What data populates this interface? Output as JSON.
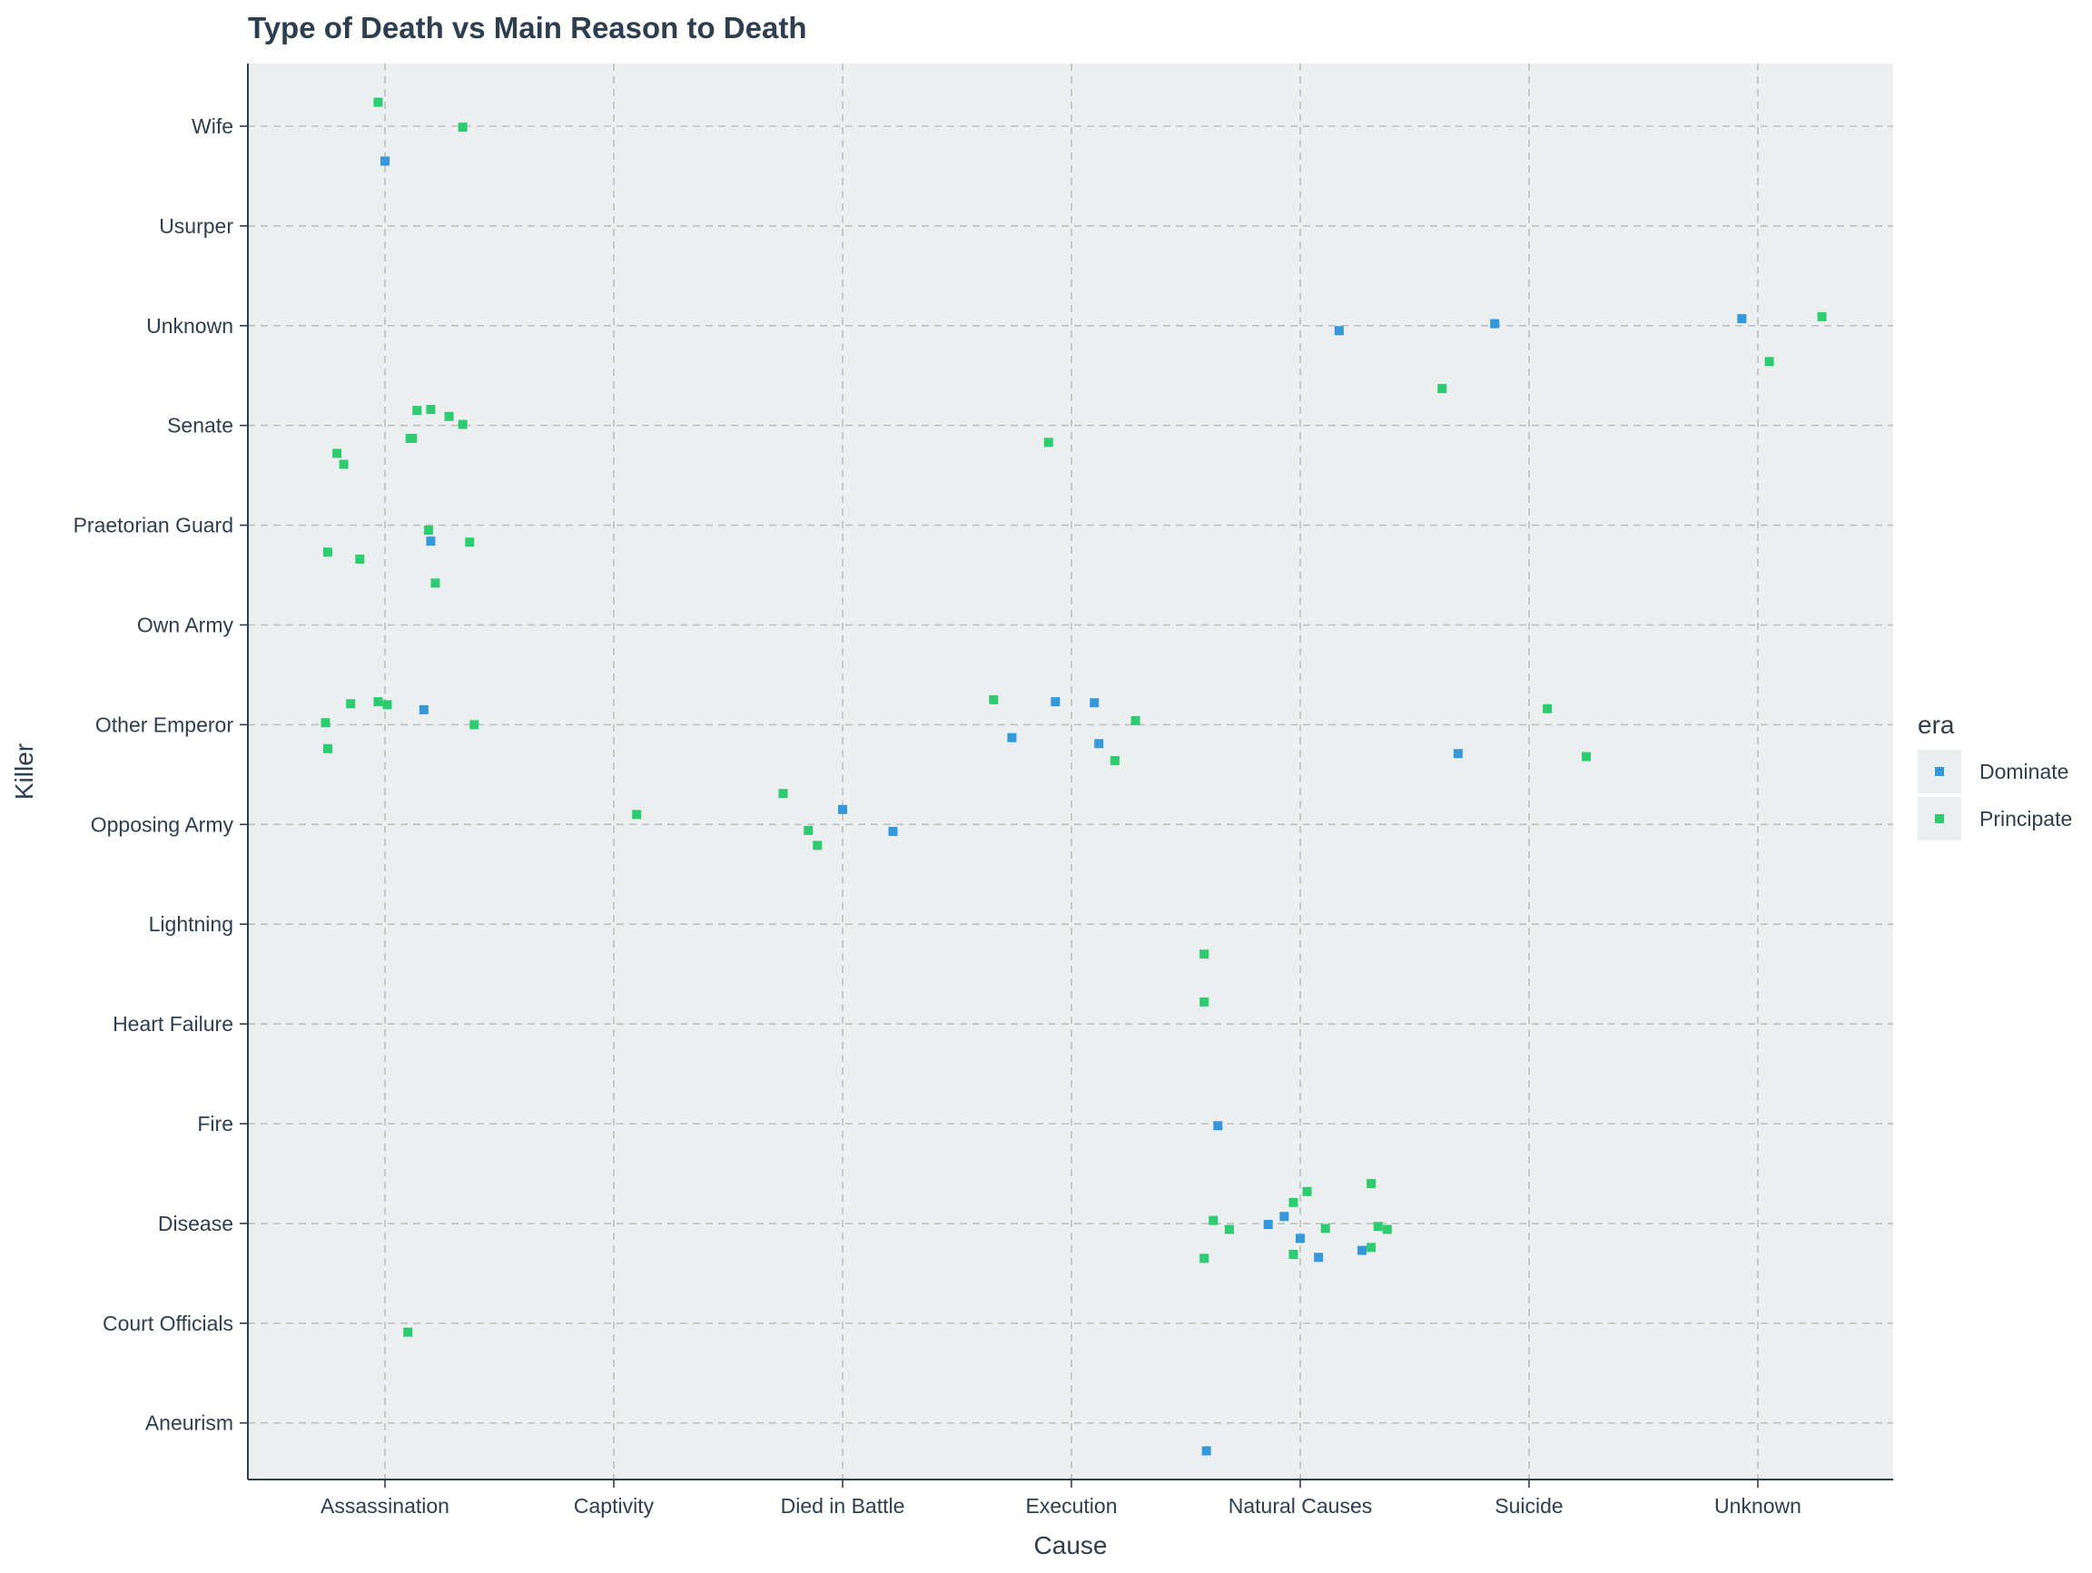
{
  "chart_data": {
    "type": "scatter",
    "title": "Type of Death vs Main Reason to Death",
    "xlabel": "Cause",
    "ylabel": "Killer",
    "x_categories": [
      "Assassination",
      "Captivity",
      "Died in Battle",
      "Execution",
      "Natural Causes",
      "Suicide",
      "Unknown"
    ],
    "y_categories": [
      "Aneurism",
      "Court Officials",
      "Disease",
      "Fire",
      "Heart Failure",
      "Lightning",
      "Opposing Army",
      "Other Emperor",
      "Own Army",
      "Praetorian Guard",
      "Senate",
      "Unknown",
      "Usurper",
      "Wife"
    ],
    "grid": true,
    "legend": {
      "title": "era",
      "position": "right"
    },
    "colors": {
      "plot_bg": "#ebeff0",
      "grid": "#bfbfbf",
      "text": "#2c3e50",
      "Dominate": "#3498db",
      "Principate": "#2ecc71"
    },
    "series": [
      {
        "name": "Dominate",
        "points": [
          {
            "x": 0.0,
            "y": 12.65
          },
          {
            "x": 0.2,
            "y": 8.84
          },
          {
            "x": 0.17,
            "y": 7.15
          },
          {
            "x": 2.0,
            "y": 6.15
          },
          {
            "x": 2.22,
            "y": 5.93
          },
          {
            "x": 2.74,
            "y": 6.87
          },
          {
            "x": 2.93,
            "y": 7.23
          },
          {
            "x": 3.1,
            "y": 7.22
          },
          {
            "x": 3.12,
            "y": 6.81
          },
          {
            "x": 4.17,
            "y": 10.95
          },
          {
            "x": 4.85,
            "y": 11.02
          },
          {
            "x": 4.69,
            "y": 6.71
          },
          {
            "x": 5.93,
            "y": 11.07
          },
          {
            "x": 3.64,
            "y": 2.98
          },
          {
            "x": 3.86,
            "y": 1.99
          },
          {
            "x": 3.93,
            "y": 2.07
          },
          {
            "x": 4.0,
            "y": 1.85
          },
          {
            "x": 4.08,
            "y": 1.66
          },
          {
            "x": 4.27,
            "y": 1.73
          },
          {
            "x": 3.59,
            "y": -0.28
          }
        ]
      },
      {
        "name": "Principate",
        "points": [
          {
            "x": -0.03,
            "y": 13.24
          },
          {
            "x": 0.34,
            "y": 12.99
          },
          {
            "x": 0.28,
            "y": 10.09
          },
          {
            "x": 0.14,
            "y": 10.15
          },
          {
            "x": 0.2,
            "y": 10.16
          },
          {
            "x": 0.34,
            "y": 10.01
          },
          {
            "x": 0.11,
            "y": 9.87
          },
          {
            "x": 0.12,
            "y": 9.87
          },
          {
            "x": -0.21,
            "y": 9.72
          },
          {
            "x": -0.18,
            "y": 9.61
          },
          {
            "x": 0.19,
            "y": 8.95
          },
          {
            "x": -0.25,
            "y": 8.73
          },
          {
            "x": -0.11,
            "y": 8.66
          },
          {
            "x": 0.37,
            "y": 8.83
          },
          {
            "x": 0.22,
            "y": 8.42
          },
          {
            "x": -0.15,
            "y": 7.21
          },
          {
            "x": -0.03,
            "y": 7.23
          },
          {
            "x": 0.01,
            "y": 7.2
          },
          {
            "x": -0.26,
            "y": 7.02
          },
          {
            "x": 0.39,
            "y": 7.0
          },
          {
            "x": -0.25,
            "y": 6.76
          },
          {
            "x": 0.1,
            "y": 0.91
          },
          {
            "x": 1.1,
            "y": 6.1
          },
          {
            "x": 1.74,
            "y": 6.31
          },
          {
            "x": 1.85,
            "y": 5.94
          },
          {
            "x": 1.89,
            "y": 5.79
          },
          {
            "x": 2.9,
            "y": 9.83
          },
          {
            "x": 2.66,
            "y": 7.25
          },
          {
            "x": 3.28,
            "y": 7.04
          },
          {
            "x": 3.19,
            "y": 6.64
          },
          {
            "x": 4.62,
            "y": 10.37
          },
          {
            "x": 5.08,
            "y": 7.16
          },
          {
            "x": 5.25,
            "y": 6.68
          },
          {
            "x": 6.05,
            "y": 10.64
          },
          {
            "x": 6.28,
            "y": 11.09
          },
          {
            "x": 3.58,
            "y": 4.7
          },
          {
            "x": 3.58,
            "y": 4.22
          },
          {
            "x": 3.62,
            "y": 2.03
          },
          {
            "x": 3.69,
            "y": 1.94
          },
          {
            "x": 3.58,
            "y": 1.65
          },
          {
            "x": 3.97,
            "y": 2.21
          },
          {
            "x": 4.03,
            "y": 2.32
          },
          {
            "x": 3.97,
            "y": 1.69
          },
          {
            "x": 4.11,
            "y": 1.95
          },
          {
            "x": 4.31,
            "y": 2.4
          },
          {
            "x": 4.34,
            "y": 1.97
          },
          {
            "x": 4.38,
            "y": 1.94
          },
          {
            "x": 4.31,
            "y": 1.76
          }
        ]
      }
    ]
  }
}
